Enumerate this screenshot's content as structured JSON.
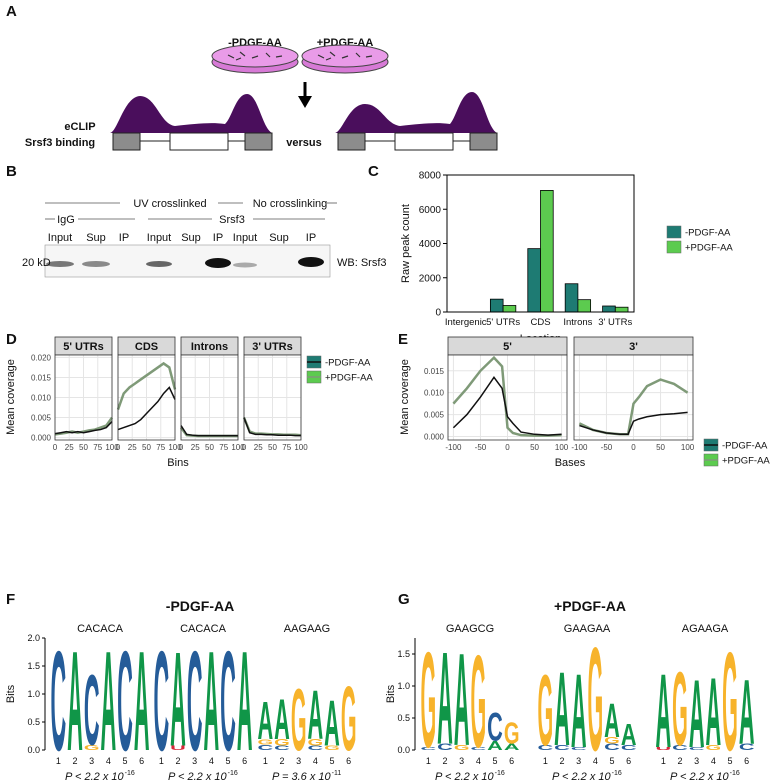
{
  "panel_labels": [
    "A",
    "B",
    "C",
    "D",
    "E",
    "F",
    "G"
  ],
  "panel_a": {
    "conditions": [
      "-PDGF-AA",
      "+PDGF-AA"
    ],
    "track_label": [
      "eCLIP",
      "Srsf3 binding"
    ],
    "comparison": "versus"
  },
  "panel_b": {
    "groups": [
      "UV crosslinked",
      "No crosslinking"
    ],
    "antibodies": [
      "IgG",
      "Srsf3"
    ],
    "lanes": [
      "Input",
      "Sup",
      "IP",
      "Input",
      "Sup",
      "IP",
      "Input",
      "Sup",
      "IP"
    ],
    "size_marker": "20 kD",
    "blot": "WB: Srsf3"
  },
  "chart_data": [
    {
      "type": "bar",
      "xlabel": "Location",
      "ylabel": "Raw peak count",
      "categories": [
        "Intergenic",
        "5' UTRs",
        "CDS",
        "Introns",
        "3' UTRs"
      ],
      "series": [
        {
          "name": "-PDGF-AA",
          "color": "#1e7b73",
          "values": [
            0,
            750,
            3700,
            1650,
            350
          ]
        },
        {
          "name": "+PDGF-AA",
          "color": "#5ccb4f",
          "values": [
            0,
            380,
            7100,
            720,
            280
          ]
        }
      ],
      "ylim": [
        0,
        8000
      ],
      "yticks": [
        0,
        2000,
        4000,
        6000,
        8000
      ]
    },
    {
      "type": "facet-line",
      "xlabel": "Bins",
      "ylabel": "Mean coverage",
      "x": [
        0,
        10,
        20,
        30,
        40,
        50,
        60,
        70,
        80,
        90,
        100
      ],
      "series": [
        {
          "name": "-PDGF-AA",
          "color": "#111111",
          "legend_fill": "#1e7b73"
        },
        {
          "name": "+PDGF-AA",
          "color": "#7f9a78",
          "legend_fill": "#5ccb4f"
        }
      ],
      "facets": [
        {
          "title": "5' UTRs",
          "values": [
            [
              0.001,
              0.0012,
              0.0015,
              0.0012,
              0.0015,
              0.0012,
              0.0015,
              0.0018,
              0.002,
              0.0025,
              0.004
            ],
            [
              0.0008,
              0.001,
              0.0012,
              0.0015,
              0.0012,
              0.0015,
              0.0018,
              0.002,
              0.0025,
              0.003,
              0.005
            ]
          ]
        },
        {
          "title": "CDS",
          "values": [
            [
              0.002,
              0.0025,
              0.003,
              0.0035,
              0.0045,
              0.006,
              0.0075,
              0.009,
              0.011,
              0.0125,
              0.0095
            ],
            [
              0.007,
              0.011,
              0.0125,
              0.0135,
              0.0145,
              0.0155,
              0.0165,
              0.0175,
              0.0185,
              0.0175,
              0.012
            ]
          ]
        },
        {
          "title": "Introns",
          "values": [
            [
              0.003,
              0.0008,
              0.0006,
              0.0005,
              0.0005,
              0.0005,
              0.0005,
              0.0005,
              0.0005,
              0.0005,
              0.0005
            ],
            [
              0.0025,
              0.0006,
              0.0005,
              0.0004,
              0.0004,
              0.0004,
              0.0004,
              0.0004,
              0.0004,
              0.0004,
              0.0004
            ]
          ]
        },
        {
          "title": "3' UTRs",
          "values": [
            [
              0.005,
              0.0012,
              0.0008,
              0.0008,
              0.0007,
              0.0007,
              0.0006,
              0.0006,
              0.0006,
              0.0005,
              0.0005
            ],
            [
              0.005,
              0.0015,
              0.001,
              0.001,
              0.0009,
              0.0008,
              0.0008,
              0.0007,
              0.0007,
              0.0007,
              0.0006
            ]
          ]
        }
      ],
      "xlim": [
        0,
        100
      ],
      "xticks": [
        0,
        25,
        50,
        75,
        100
      ],
      "ylim": [
        -0.0006,
        0.0206
      ],
      "yticks": [
        {
          "value": 0,
          "label": "0.000"
        },
        {
          "value": 0.005,
          "label": "0.005"
        },
        {
          "value": 0.01,
          "label": "0.010"
        },
        {
          "value": 0.015,
          "label": "0.015"
        },
        {
          "value": 0.02,
          "label": "0.020"
        }
      ]
    },
    {
      "type": "facet-line",
      "xlabel": "Bases",
      "ylabel": "Mean coverage",
      "x": [
        -100,
        -75,
        -50,
        -25,
        -10,
        0,
        10,
        25,
        50,
        75,
        100
      ],
      "series": [
        {
          "name": "-PDGF-AA",
          "color": "#111111",
          "legend_fill": "#1e7b73"
        },
        {
          "name": "+PDGF-AA",
          "color": "#7f9a78",
          "legend_fill": "#5ccb4f"
        }
      ],
      "facets": [
        {
          "title": "5'",
          "values": [
            [
              0.002,
              0.005,
              0.009,
              0.0135,
              0.011,
              0.0045,
              0.003,
              0.001,
              0.0005,
              0.0003,
              0.0005
            ],
            [
              0.0075,
              0.011,
              0.015,
              0.018,
              0.016,
              0.002,
              0.0008,
              0.0003,
              0.0002,
              0.0002,
              0.0003
            ]
          ]
        },
        {
          "title": "3'",
          "values": [
            [
              0.0025,
              0.0015,
              0.0008,
              0.0005,
              0.0005,
              0.0035,
              0.004,
              0.0045,
              0.005,
              0.0052,
              0.0055
            ],
            [
              0.003,
              0.0015,
              0.0008,
              0.0005,
              0.0005,
              0.0075,
              0.009,
              0.0115,
              0.013,
              0.012,
              0.01
            ]
          ]
        }
      ],
      "xlim": [
        -110,
        110
      ],
      "xticks": [
        -100,
        -50,
        0,
        50,
        100
      ],
      "ylim": [
        -0.0008,
        0.0186
      ],
      "yticks": [
        {
          "value": 0,
          "label": "0.000"
        },
        {
          "value": 0.005,
          "label": "0.005"
        },
        {
          "value": 0.01,
          "label": "0.010"
        },
        {
          "value": 0.015,
          "label": "0.015"
        }
      ]
    },
    {
      "type": "logo",
      "title": "-PDGF-AA",
      "ylabel": "Bits",
      "letter_colors": {
        "A": "#109648",
        "C": "#255c99",
        "G": "#f7b32b",
        "U": "#d62839"
      },
      "ylim": [
        0,
        2
      ],
      "yticks": [
        {
          "value": 0,
          "label": "0.0"
        },
        {
          "value": 0.5,
          "label": "0.5"
        },
        {
          "value": 1,
          "label": "1.0"
        },
        {
          "value": 1.5,
          "label": "1.5"
        },
        {
          "value": 2,
          "label": "2.0"
        }
      ],
      "xticks": [
        1,
        2,
        3,
        4,
        5,
        6
      ],
      "motifs": [
        {
          "name": "CACACA",
          "p_value": "P < 2.2 x 10",
          "p_exponent": "-16",
          "positions": [
            [
              {
                "letter": "C",
                "bits": 1.85
              }
            ],
            [
              {
                "letter": "A",
                "bits": 1.85
              }
            ],
            [
              {
                "letter": "G",
                "bits": 0.1
              },
              {
                "letter": "C",
                "bits": 1.3
              }
            ],
            [
              {
                "letter": "A",
                "bits": 1.85
              }
            ],
            [
              {
                "letter": "C",
                "bits": 1.85
              }
            ],
            [
              {
                "letter": "A",
                "bits": 1.85
              }
            ]
          ]
        },
        {
          "name": "CACACA",
          "p_value": "P < 2.2 x 10",
          "p_exponent": "-16",
          "positions": [
            [
              {
                "letter": "C",
                "bits": 1.85
              }
            ],
            [
              {
                "letter": "U",
                "bits": 0.08
              },
              {
                "letter": "A",
                "bits": 1.75
              }
            ],
            [
              {
                "letter": "C",
                "bits": 1.85
              }
            ],
            [
              {
                "letter": "A",
                "bits": 1.85
              }
            ],
            [
              {
                "letter": "C",
                "bits": 1.85
              }
            ],
            [
              {
                "letter": "A",
                "bits": 1.85
              }
            ]
          ]
        },
        {
          "name": "AAGAAG",
          "p_value": "P = 3.6 x 10",
          "p_exponent": "-11",
          "positions": [
            [
              {
                "letter": "C",
                "bits": 0.1
              },
              {
                "letter": "G",
                "bits": 0.1
              },
              {
                "letter": "A",
                "bits": 0.7
              }
            ],
            [
              {
                "letter": "C",
                "bits": 0.08
              },
              {
                "letter": "G",
                "bits": 0.12
              },
              {
                "letter": "A",
                "bits": 0.75
              }
            ],
            [
              {
                "letter": "G",
                "bits": 1.15
              }
            ],
            [
              {
                "letter": "C",
                "bits": 0.08
              },
              {
                "letter": "G",
                "bits": 0.12
              },
              {
                "letter": "A",
                "bits": 0.9
              }
            ],
            [
              {
                "letter": "G",
                "bits": 0.08
              },
              {
                "letter": "A",
                "bits": 0.85
              }
            ],
            [
              {
                "letter": "G",
                "bits": 1.2
              }
            ]
          ]
        }
      ]
    },
    {
      "type": "logo",
      "title": "+PDGF-AA",
      "ylabel": "Bits",
      "letter_colors": {
        "A": "#109648",
        "C": "#255c99",
        "G": "#f7b32b",
        "U": "#d62839"
      },
      "ylim": [
        0,
        1.75
      ],
      "yticks": [
        {
          "value": 0,
          "label": "0.0"
        },
        {
          "value": 0.5,
          "label": "0.5"
        },
        {
          "value": 1,
          "label": "1.0"
        },
        {
          "value": 1.5,
          "label": "1.5"
        }
      ],
      "xticks": [
        1,
        2,
        3,
        4,
        5,
        6
      ],
      "motifs": [
        {
          "name": "GAAGCG",
          "p_value": "P < 2.2 x 10",
          "p_exponent": "-16",
          "positions": [
            [
              {
                "letter": "C",
                "bits": 0.05
              },
              {
                "letter": "G",
                "bits": 1.55
              }
            ],
            [
              {
                "letter": "C",
                "bits": 0.1
              },
              {
                "letter": "A",
                "bits": 1.5
              }
            ],
            [
              {
                "letter": "G",
                "bits": 0.08
              },
              {
                "letter": "A",
                "bits": 1.5
              }
            ],
            [
              {
                "letter": "C",
                "bits": 0.05
              },
              {
                "letter": "G",
                "bits": 1.5
              }
            ],
            [
              {
                "letter": "A",
                "bits": 0.15
              },
              {
                "letter": "C",
                "bits": 0.45
              }
            ],
            [
              {
                "letter": "A",
                "bits": 0.1
              },
              {
                "letter": "G",
                "bits": 0.35
              }
            ]
          ]
        },
        {
          "name": "GAAGAA",
          "p_value": "P < 2.2 x 10",
          "p_exponent": "-16",
          "positions": [
            [
              {
                "letter": "C",
                "bits": 0.08
              },
              {
                "letter": "G",
                "bits": 1.15
              }
            ],
            [
              {
                "letter": "C",
                "bits": 0.08
              },
              {
                "letter": "A",
                "bits": 1.2
              }
            ],
            [
              {
                "letter": "C",
                "bits": 0.05
              },
              {
                "letter": "A",
                "bits": 1.2
              }
            ],
            [
              {
                "letter": "G",
                "bits": 1.68
              }
            ],
            [
              {
                "letter": "C",
                "bits": 0.1
              },
              {
                "letter": "G",
                "bits": 0.1
              },
              {
                "letter": "A",
                "bits": 0.55
              }
            ],
            [
              {
                "letter": "C",
                "bits": 0.08
              },
              {
                "letter": "A",
                "bits": 0.35
              }
            ]
          ]
        },
        {
          "name": "AGAAGA",
          "p_value": "P < 2.2 x 10",
          "p_exponent": "-16",
          "positions": [
            [
              {
                "letter": "U",
                "bits": 0.05
              },
              {
                "letter": "A",
                "bits": 1.2
              }
            ],
            [
              {
                "letter": "C",
                "bits": 0.08
              },
              {
                "letter": "G",
                "bits": 1.2
              }
            ],
            [
              {
                "letter": "C",
                "bits": 0.05
              },
              {
                "letter": "A",
                "bits": 1.1
              }
            ],
            [
              {
                "letter": "G",
                "bits": 0.08
              },
              {
                "letter": "A",
                "bits": 1.1
              }
            ],
            [
              {
                "letter": "G",
                "bits": 1.6
              }
            ],
            [
              {
                "letter": "C",
                "bits": 0.1
              },
              {
                "letter": "A",
                "bits": 1.05
              }
            ]
          ]
        }
      ]
    }
  ]
}
